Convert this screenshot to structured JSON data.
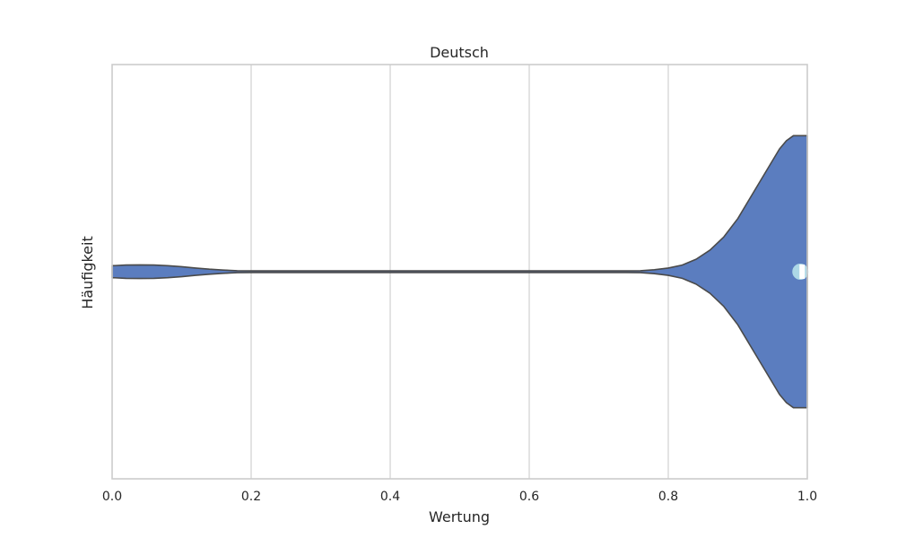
{
  "chart_data": {
    "type": "violin",
    "title": "Deutsch",
    "xlabel": "Wertung",
    "ylabel": "Häufigkeit",
    "xlim": [
      0.0,
      1.0
    ],
    "x_ticks": [
      0.0,
      0.2,
      0.4,
      0.6,
      0.8,
      1.0
    ],
    "x_tick_labels": [
      "0.0",
      "0.2",
      "0.4",
      "0.6",
      "0.8",
      "1.0"
    ],
    "grid": "vertical",
    "colors": {
      "violin_fill": "#5b7dbf",
      "violin_edge": "#4a4a4a",
      "median_marker": "#add8e6",
      "grid": "#d0d0d0",
      "frame": "#cccccc"
    },
    "density": {
      "x": [
        0.0,
        0.02,
        0.04,
        0.06,
        0.08,
        0.1,
        0.12,
        0.14,
        0.16,
        0.18,
        0.2,
        0.22,
        0.25,
        0.3,
        0.4,
        0.5,
        0.6,
        0.7,
        0.74,
        0.76,
        0.78,
        0.8,
        0.82,
        0.84,
        0.86,
        0.88,
        0.9,
        0.92,
        0.94,
        0.96,
        0.97,
        0.98,
        0.99,
        1.0
      ],
      "width": [
        0.036,
        0.04,
        0.041,
        0.04,
        0.036,
        0.03,
        0.022,
        0.015,
        0.01,
        0.006,
        0.003,
        0.001,
        0.0,
        0.0,
        0.0,
        0.0,
        0.0,
        0.0005,
        0.003,
        0.006,
        0.012,
        0.022,
        0.04,
        0.075,
        0.13,
        0.21,
        0.32,
        0.46,
        0.6,
        0.74,
        0.79,
        0.82,
        0.82,
        0.82
      ]
    },
    "median": 0.99
  }
}
